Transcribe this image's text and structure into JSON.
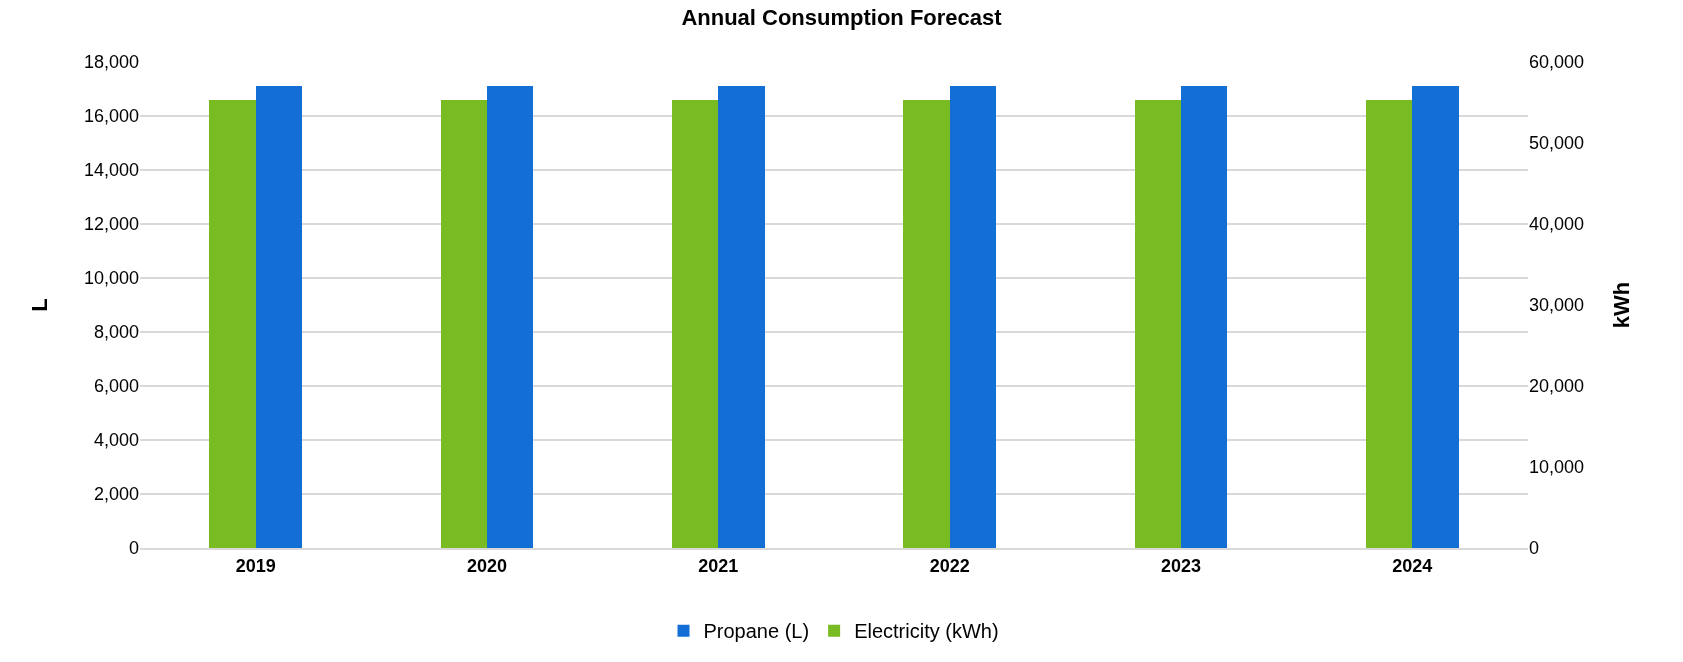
{
  "chart_data": {
    "type": "bar",
    "title": "Annual Consumption Forecast",
    "ylabel": "L",
    "y2label": "kWh",
    "categories": [
      "2019",
      "2020",
      "2021",
      "2022",
      "2023",
      "2024"
    ],
    "series": [
      {
        "name": "Electricity (kWh)",
        "color": "#78bb22",
        "axis": "y2",
        "values": [
          55300,
          55300,
          55300,
          55300,
          55300,
          55300
        ]
      },
      {
        "name": "Propane (L)",
        "color": "#136fd6",
        "values": [
          17100,
          17100,
          17100,
          17100,
          17100,
          17100
        ]
      }
    ],
    "ylim": [
      0,
      18000
    ],
    "yticks": [
      0,
      {
        "value": 2000,
        "label": "2,000"
      },
      {
        "value": 4000,
        "label": "4,000"
      },
      {
        "value": 6000,
        "label": "6,000"
      },
      {
        "value": 8000,
        "label": "8,000"
      },
      {
        "value": 10000,
        "label": "10,000"
      },
      {
        "value": 12000,
        "label": "12,000"
      },
      {
        "value": 14000,
        "label": "14,000"
      },
      {
        "value": 16000,
        "label": "16,000"
      },
      {
        "value": 18000,
        "label": "18,000"
      }
    ],
    "y2lim": [
      0,
      60000
    ],
    "y2ticks": [
      0,
      {
        "value": 10000,
        "label": "10,000"
      },
      {
        "value": 20000,
        "label": "20,000"
      },
      {
        "value": 30000,
        "label": "30,000"
      },
      {
        "value": 40000,
        "label": "40,000"
      },
      {
        "value": 50000,
        "label": "50,000"
      },
      {
        "value": 60000,
        "label": "60,000"
      }
    ],
    "grid": "y",
    "legend": "bottom"
  }
}
